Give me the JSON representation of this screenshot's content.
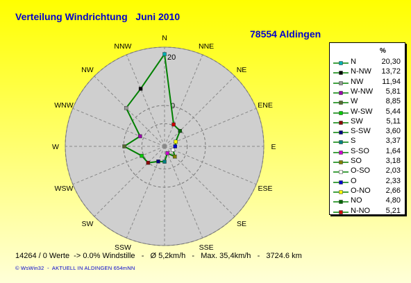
{
  "header": {
    "title": "Verteilung Windrichtung   Juni 2010",
    "location": "78554 Aldingen"
  },
  "footer": {
    "stats": "14264 / 0 Werte  -> 0.0% Windstille   -   Ø 5,2km/h   -   Max. 35,4km/h   -   3724.6 km",
    "copyright": "© WsWin32  -  AKTUELL IN ALDINGEN 654mNN"
  },
  "colors": {
    "background_top": "#ffff00",
    "background_bottom": "#ffffd8",
    "plot_fill": "#cfcfcf",
    "series_line": "#008000",
    "text_blue": "#0000cc"
  },
  "chart_data": {
    "type": "radar",
    "value_unit": "%",
    "rmax": 20,
    "ring_labels": [
      "20",
      "0"
    ],
    "compass_labels": [
      "N",
      "NNE",
      "NE",
      "ENE",
      "E",
      "ESE",
      "SE",
      "SSE",
      "S",
      "SSW",
      "SW",
      "WSW",
      "W",
      "WNW",
      "NW",
      "NNW"
    ],
    "legend_header": "%",
    "series": [
      {
        "name": "N",
        "value": "20,30",
        "v": 20.3,
        "color": "#00b0b0"
      },
      {
        "name": "N-NW",
        "value": "13,72",
        "v": 13.72,
        "color": "#000000"
      },
      {
        "name": "NW",
        "value": "11,94",
        "v": 11.94,
        "color": "#999999"
      },
      {
        "name": "W-NW",
        "value": "5,81",
        "v": 5.81,
        "color": "#9900aa"
      },
      {
        "name": "W",
        "value": "8,85",
        "v": 8.85,
        "color": "#556b2f"
      },
      {
        "name": "W-SW",
        "value": "5,44",
        "v": 5.44,
        "color": "#00cc00"
      },
      {
        "name": "SW",
        "value": "5,11",
        "v": 5.11,
        "color": "#8b0000"
      },
      {
        "name": "S-SW",
        "value": "3,60",
        "v": 3.6,
        "color": "#000080"
      },
      {
        "name": "S",
        "value": "3,37",
        "v": 3.37,
        "color": "#008080"
      },
      {
        "name": "S-SO",
        "value": "1,64",
        "v": 1.64,
        "color": "#cc00cc"
      },
      {
        "name": "SO",
        "value": "3,18",
        "v": 3.18,
        "color": "#808000"
      },
      {
        "name": "O-SO",
        "value": "2,03",
        "v": 2.03,
        "color": "#ffffff"
      },
      {
        "name": "O",
        "value": "2,33",
        "v": 2.33,
        "color": "#0000cc"
      },
      {
        "name": "O-NO",
        "value": "2,66",
        "v": 2.66,
        "color": "#ffff00"
      },
      {
        "name": "NO",
        "value": "4,80",
        "v": 4.8,
        "color": "#006400"
      },
      {
        "name": "N-NO",
        "value": "5,21",
        "v": 5.21,
        "color": "#cc0000"
      }
    ]
  }
}
